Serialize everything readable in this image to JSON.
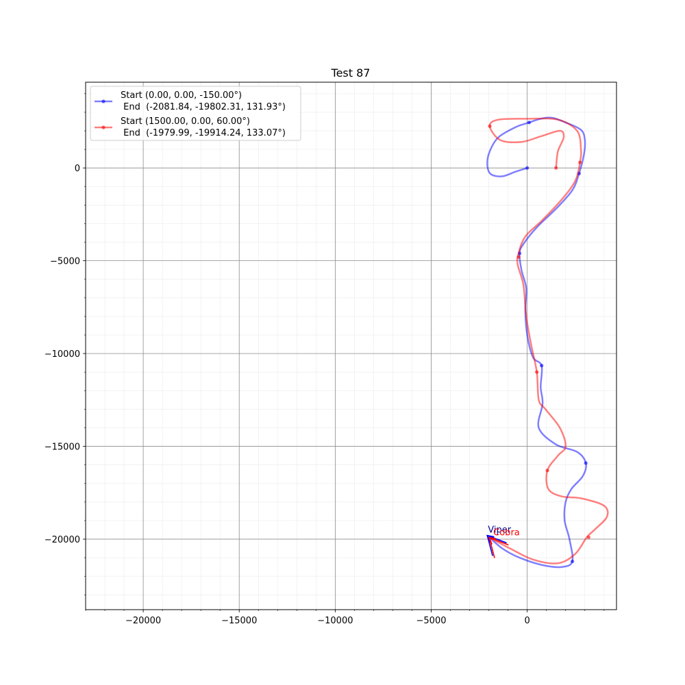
{
  "chart_data": {
    "type": "line",
    "title": "Test 87",
    "xlabel": "",
    "ylabel": "",
    "xlim": [
      -23000,
      4650
    ],
    "ylim": [
      -23800,
      4620
    ],
    "xticks": [
      -20000,
      -15000,
      -10000,
      -5000,
      0
    ],
    "yticks": [
      0,
      -5000,
      -10000,
      -15000,
      -20000
    ],
    "xtick_labels": [
      "−20000",
      "−15000",
      "−10000",
      "−5000",
      "0"
    ],
    "ytick_labels": [
      "0",
      "−5000",
      "−10000",
      "−15000",
      "−20000"
    ],
    "minor_step": 1000,
    "grid": true,
    "legend_position": "upper-left",
    "series": [
      {
        "name": "Start (0.00, 0.00, -150.00°)\n End  (-2081.84, -19802.31, 131.93°)",
        "legend_line1": "Start (0.00, 0.00, -150.00°)",
        "legend_line2": " End  (-2081.84, -19802.31, 131.93°)",
        "color": "#0000ff",
        "path": [
          [
            0,
            0
          ],
          [
            -600,
            -200
          ],
          [
            -1300,
            -450
          ],
          [
            -1900,
            -330
          ],
          [
            -2080,
            200
          ],
          [
            -1950,
            900
          ],
          [
            -1500,
            1650
          ],
          [
            -600,
            2200
          ],
          [
            100,
            2450
          ],
          [
            700,
            2650
          ],
          [
            1300,
            2700
          ],
          [
            2000,
            2450
          ],
          [
            2800,
            2050
          ],
          [
            3000,
            1500
          ],
          [
            2950,
            700
          ],
          [
            2700,
            -300
          ],
          [
            2350,
            -1200
          ],
          [
            1500,
            -2200
          ],
          [
            500,
            -3200
          ],
          [
            -200,
            -4100
          ],
          [
            -400,
            -4600
          ],
          [
            -300,
            -5500
          ],
          [
            -50,
            -6500
          ],
          [
            -100,
            -7700
          ],
          [
            0,
            -9000
          ],
          [
            300,
            -10200
          ],
          [
            750,
            -10650
          ],
          [
            700,
            -11800
          ],
          [
            800,
            -12700
          ],
          [
            600,
            -14000
          ],
          [
            1500,
            -14900
          ],
          [
            2600,
            -15300
          ],
          [
            3050,
            -15900
          ],
          [
            2900,
            -16600
          ],
          [
            2300,
            -17300
          ],
          [
            2000,
            -18000
          ],
          [
            1950,
            -19000
          ],
          [
            2200,
            -20000
          ],
          [
            2350,
            -21200
          ],
          [
            1800,
            -21500
          ],
          [
            800,
            -21400
          ],
          [
            -400,
            -21000
          ],
          [
            -1300,
            -20500
          ],
          [
            -2082,
            -19802
          ]
        ],
        "markers": [
          [
            0,
            0
          ],
          [
            2700,
            -300
          ],
          [
            -400,
            -4600
          ],
          [
            750,
            -10650
          ],
          [
            3050,
            -15900
          ],
          [
            2350,
            -21200
          ],
          [
            100,
            2450
          ]
        ],
        "end_label": "Viper",
        "end_point": [
          -2082,
          -19802
        ],
        "heading_deg": 131.93
      },
      {
        "name": "Start (1500.00, 0.00, 60.00°)\n End  (-1979.99, -19914.24, 133.07°)",
        "legend_line1": "Start (1500.00, 0.00, 60.00°)",
        "legend_line2": " End  (-1979.99, -19914.24, 133.07°)",
        "color": "#ff0000",
        "path": [
          [
            1500,
            0
          ],
          [
            1600,
            900
          ],
          [
            1900,
            1650
          ],
          [
            1700,
            2000
          ],
          [
            700,
            1700
          ],
          [
            -300,
            1400
          ],
          [
            -1400,
            1500
          ],
          [
            -1950,
            2250
          ],
          [
            -1500,
            2600
          ],
          [
            0,
            2650
          ],
          [
            1600,
            2600
          ],
          [
            2600,
            2000
          ],
          [
            2800,
            1000
          ],
          [
            2750,
            300
          ],
          [
            2500,
            -700
          ],
          [
            1800,
            -1700
          ],
          [
            800,
            -2800
          ],
          [
            -100,
            -3700
          ],
          [
            -450,
            -4600
          ],
          [
            -500,
            -5200
          ],
          [
            -200,
            -6300
          ],
          [
            -50,
            -8000
          ],
          [
            200,
            -9500
          ],
          [
            500,
            -11000
          ],
          [
            600,
            -12500
          ],
          [
            950,
            -13000
          ],
          [
            1700,
            -14000
          ],
          [
            2000,
            -15000
          ],
          [
            1600,
            -15500
          ],
          [
            1050,
            -16300
          ],
          [
            1100,
            -17300
          ],
          [
            1800,
            -17700
          ],
          [
            2800,
            -17800
          ],
          [
            4000,
            -18200
          ],
          [
            4150,
            -18800
          ],
          [
            3500,
            -19500
          ],
          [
            3100,
            -19900
          ],
          [
            2500,
            -20800
          ],
          [
            1600,
            -21300
          ],
          [
            300,
            -21100
          ],
          [
            -900,
            -20500
          ],
          [
            -1980,
            -19914
          ]
        ],
        "markers": [
          [
            1500,
            0
          ],
          [
            2750,
            300
          ],
          [
            -450,
            -4800
          ],
          [
            500,
            -11000
          ],
          [
            1050,
            -16300
          ],
          [
            3200,
            -19900
          ],
          [
            -1950,
            2250
          ]
        ],
        "end_label": "Cobra",
        "end_point": [
          -1980,
          -19914
        ],
        "heading_deg": 133.07
      }
    ]
  }
}
